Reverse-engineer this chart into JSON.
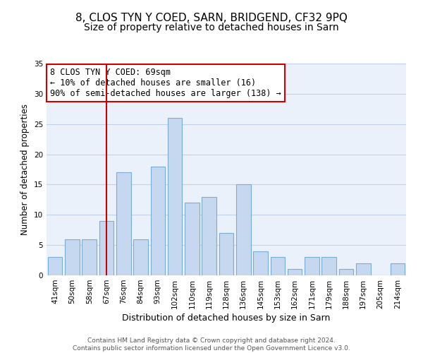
{
  "title": "8, CLOS TYN Y COED, SARN, BRIDGEND, CF32 9PQ",
  "subtitle": "Size of property relative to detached houses in Sarn",
  "xlabel": "Distribution of detached houses by size in Sarn",
  "ylabel": "Number of detached properties",
  "bar_labels": [
    "41sqm",
    "50sqm",
    "58sqm",
    "67sqm",
    "76sqm",
    "84sqm",
    "93sqm",
    "102sqm",
    "110sqm",
    "119sqm",
    "128sqm",
    "136sqm",
    "145sqm",
    "153sqm",
    "162sqm",
    "171sqm",
    "179sqm",
    "188sqm",
    "197sqm",
    "205sqm",
    "214sqm"
  ],
  "bar_values": [
    3,
    6,
    6,
    9,
    17,
    6,
    18,
    26,
    12,
    13,
    7,
    15,
    4,
    3,
    1,
    3,
    3,
    1,
    2,
    0,
    2
  ],
  "bar_color": "#c5d8f0",
  "bar_edge_color": "#7aadd4",
  "vline_x_index": 3,
  "vline_color": "#cc0000",
  "annotation_text": "8 CLOS TYN Y COED: 69sqm\n← 10% of detached houses are smaller (16)\n90% of semi-detached houses are larger (138) →",
  "annotation_box_edgecolor": "#cc0000",
  "annotation_box_facecolor": "#ffffff",
  "ylim": [
    0,
    35
  ],
  "yticks": [
    0,
    5,
    10,
    15,
    20,
    25,
    30,
    35
  ],
  "grid_color": "#c0d0e8",
  "background_color": "#eaf1fb",
  "footer_text": "Contains HM Land Registry data © Crown copyright and database right 2024.\nContains public sector information licensed under the Open Government Licence v3.0.",
  "title_fontsize": 11,
  "subtitle_fontsize": 10,
  "annotation_fontsize": 8.5,
  "tick_fontsize": 7.5,
  "ylabel_fontsize": 8.5,
  "xlabel_fontsize": 9
}
